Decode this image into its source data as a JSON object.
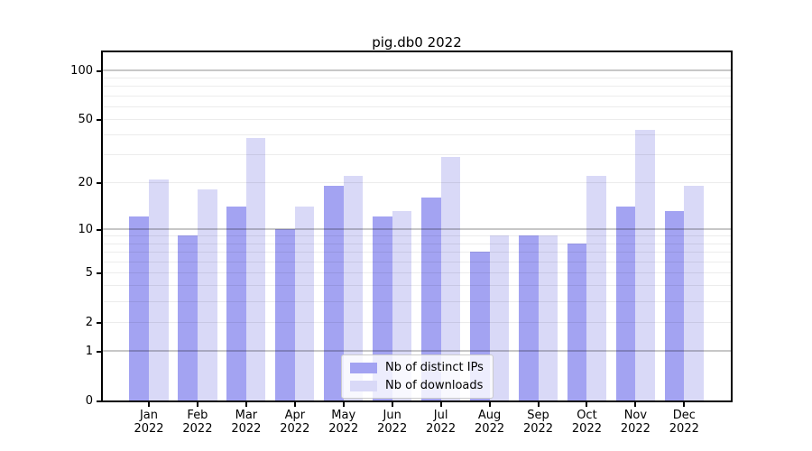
{
  "title": "pig.db0 2022",
  "legend": {
    "items": [
      {
        "label": "Nb of distinct IPs"
      },
      {
        "label": "Nb of downloads"
      }
    ]
  },
  "chart_data": {
    "type": "bar",
    "title": "pig.db0 2022",
    "categories": [
      "Jan 2022",
      "Feb 2022",
      "Mar 2022",
      "Apr 2022",
      "May 2022",
      "Jun 2022",
      "Jul 2022",
      "Aug 2022",
      "Sep 2022",
      "Oct 2022",
      "Nov 2022",
      "Dec 2022"
    ],
    "series": [
      {
        "name": "Nb of distinct IPs",
        "color": "#a3a3f2",
        "values": [
          12,
          9,
          14,
          10,
          19,
          12,
          16,
          7,
          9,
          8,
          14,
          13
        ]
      },
      {
        "name": "Nb of downloads",
        "color": "#d9d9f7",
        "values": [
          21,
          18,
          38,
          14,
          22,
          13,
          29,
          9,
          9,
          22,
          43,
          19
        ]
      }
    ],
    "xlabel": "",
    "ylabel": "",
    "yscale": "log(1+x)",
    "ylim": [
      0,
      128
    ],
    "ytick_values": [
      0,
      1,
      2,
      5,
      10,
      20,
      50,
      100
    ],
    "ytick_labels": [
      "0",
      "1",
      "2",
      "5",
      "10",
      "20",
      "50",
      "100"
    ],
    "major_grid_values": [
      1,
      10,
      100
    ],
    "minor_grid_values": [
      2,
      3,
      4,
      5,
      6,
      7,
      8,
      9,
      20,
      30,
      40,
      50,
      60,
      70,
      80,
      90
    ],
    "grid": true,
    "legend_position": "lower center"
  }
}
